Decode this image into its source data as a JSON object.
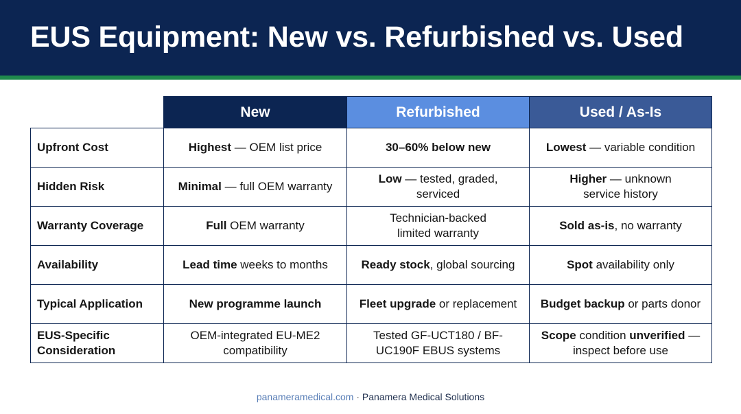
{
  "title": "EUS Equipment: New vs. Refurbished vs. Used",
  "colors": {
    "header_bg": "#0c2552",
    "accent_stripe": "#1f8a4c",
    "col_new": "#0c2552",
    "col_refurbished": "#5b8ee0",
    "col_used": "#3a5a97"
  },
  "table": {
    "columns": [
      "New",
      "Refurbished",
      "Used / As-Is"
    ],
    "rows": [
      {
        "label": "Upfront Cost",
        "cells": [
          {
            "b1": "Highest",
            "t1": " — OEM list price"
          },
          {
            "b1": "30–60% below new"
          },
          {
            "b1": "Lowest",
            "t1": " — variable condition"
          }
        ]
      },
      {
        "label": "Hidden Risk",
        "cells": [
          {
            "b1": "Minimal",
            "t1": " — full OEM warranty"
          },
          {
            "b1": "Low",
            "t1": " — tested, graded, serviced"
          },
          {
            "b1": "Higher",
            "t1": " — unknown service history"
          }
        ]
      },
      {
        "label": "Warranty Coverage",
        "cells": [
          {
            "b1": "Full",
            "t1": " OEM warranty"
          },
          {
            "t1": "Technician-backed limited warranty"
          },
          {
            "b1": "Sold as-is",
            "t1": ", no warranty"
          }
        ]
      },
      {
        "label": "Availability",
        "cells": [
          {
            "b1": "Lead time",
            "t1": " weeks to months"
          },
          {
            "b1": "Ready stock",
            "t1": ", global sourcing"
          },
          {
            "b1": "Spot",
            "t1": " availability only"
          }
        ]
      },
      {
        "label": "Typical Application",
        "cells": [
          {
            "b1": "New programme launch"
          },
          {
            "b1": "Fleet upgrade",
            "t1": " or replacement"
          },
          {
            "b1": "Budget backup",
            "t1": " or parts donor"
          }
        ]
      },
      {
        "label": "EUS-Specific Consideration",
        "cells": [
          {
            "t1": "OEM-integrated EU-ME2 compatibility"
          },
          {
            "t1": "Tested GF-UCT180 / BF-UC190F EBUS systems"
          },
          {
            "b1": "Scope",
            "t1": " condition ",
            "b2": "unverified",
            "t2": " — inspect before use"
          }
        ]
      }
    ]
  },
  "footer": {
    "url": "panameramedical.com",
    "separator": " · ",
    "org": "Panamera Medical Solutions"
  }
}
